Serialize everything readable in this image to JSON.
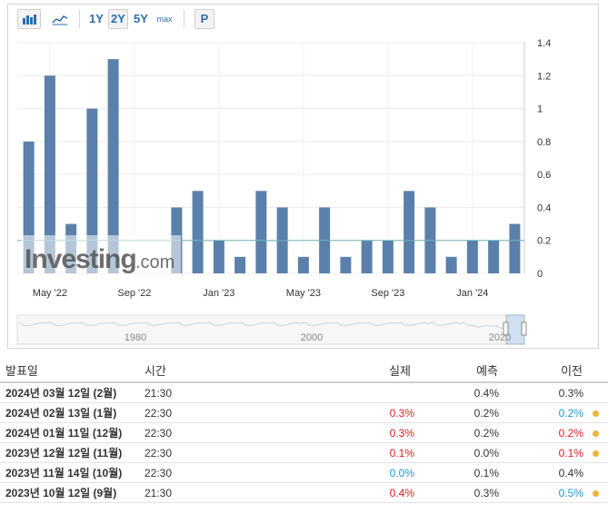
{
  "toolbar": {
    "range_1y": "1Y",
    "range_2y": "2Y",
    "range_5y": "5Y",
    "range_max": "max",
    "p_label": "P",
    "active_range": "2Y"
  },
  "chart_data": {
    "type": "bar",
    "categories": [
      "2022-04",
      "2022-05",
      "2022-06",
      "2022-07",
      "2022-08",
      "2022-09",
      "2022-10",
      "2022-11",
      "2022-12",
      "2023-01",
      "2023-02",
      "2023-03",
      "2023-04",
      "2023-05",
      "2023-06",
      "2023-07",
      "2023-08",
      "2023-09",
      "2023-10",
      "2023-11",
      "2023-12",
      "2024-01",
      "2024-02"
    ],
    "values": [
      0.8,
      1.2,
      0.3,
      1.0,
      1.3,
      0.0,
      0.0,
      0.4,
      0.5,
      0.2,
      0.1,
      0.5,
      0.4,
      0.1,
      0.4,
      0.1,
      0.2,
      0.2,
      0.5,
      0.4,
      0.1,
      0.2,
      0.2
    ],
    "last_value": 0.3,
    "xtick_labels": [
      "May '22",
      "Sep '22",
      "Jan '23",
      "May '23",
      "Sep '23",
      "Jan '24"
    ],
    "ytick_labels": [
      "1.4",
      "1.2",
      "1",
      "0.8",
      "0.6",
      "0.4",
      "0.2",
      "0"
    ],
    "ylim": [
      0,
      1.4
    ],
    "reference_line": 0.2,
    "watermark_text": "Investing",
    "watermark_suffix": ".com",
    "navigator_labels": [
      "1980",
      "2000",
      "2020"
    ],
    "bar_color": "#5b80ab",
    "reference_line_color": "#6fb3b1",
    "grid": true
  },
  "table": {
    "headers": {
      "date": "발표일",
      "time": "시간",
      "actual": "실제",
      "forecast": "예측",
      "previous": "이전"
    },
    "rows": [
      {
        "date": "2024년 03월 12일 (2월)",
        "time": "21:30",
        "actual": "",
        "actual_color": "#333333",
        "forecast": "0.4%",
        "previous": "0.3%",
        "previous_color": "#333333",
        "dot": false
      },
      {
        "date": "2024년 02월 13일 (1월)",
        "time": "22:30",
        "actual": "0.3%",
        "actual_color": "#e02020",
        "forecast": "0.2%",
        "previous": "0.2%",
        "previous_color": "#1a9ad6",
        "dot": true
      },
      {
        "date": "2024년 01월 11일 (12월)",
        "time": "22:30",
        "actual": "0.3%",
        "actual_color": "#e02020",
        "forecast": "0.2%",
        "previous": "0.2%",
        "previous_color": "#e02020",
        "dot": true
      },
      {
        "date": "2023년 12월 12일 (11월)",
        "time": "22:30",
        "actual": "0.1%",
        "actual_color": "#e02020",
        "forecast": "0.0%",
        "previous": "0.1%",
        "previous_color": "#e02020",
        "dot": true
      },
      {
        "date": "2023년 11월 14일 (10월)",
        "time": "22:30",
        "actual": "0.0%",
        "actual_color": "#1a9ad6",
        "forecast": "0.1%",
        "previous": "0.4%",
        "previous_color": "#333333",
        "dot": false
      },
      {
        "date": "2023년 10월 12일 (9월)",
        "time": "21:30",
        "actual": "0.4%",
        "actual_color": "#e02020",
        "forecast": "0.3%",
        "previous": "0.5%",
        "previous_color": "#1a9ad6",
        "dot": true
      }
    ],
    "dot_color": "#e9b53c"
  }
}
